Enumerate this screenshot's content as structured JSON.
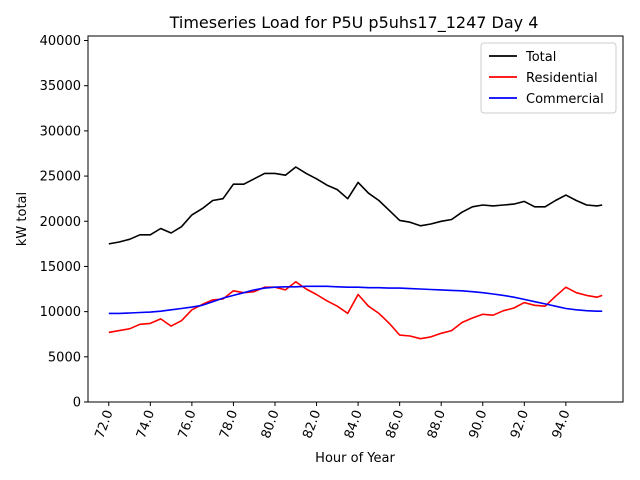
{
  "chart_data": {
    "type": "line",
    "title": "Timeseries Load for P5U p5uhs17_1247  Day 4",
    "xlabel": "Hour of Year",
    "ylabel": "kW total",
    "xlim": [
      71,
      96.75
    ],
    "ylim": [
      0,
      40500
    ],
    "xticks": [
      72,
      74,
      76,
      78,
      80,
      82,
      84,
      86,
      88,
      90,
      92,
      94
    ],
    "xtick_labels": [
      "72.0",
      "74.0",
      "76.0",
      "78.0",
      "80.0",
      "82.0",
      "84.0",
      "86.0",
      "88.0",
      "90.0",
      "92.0",
      "94.0"
    ],
    "yticks": [
      0,
      5000,
      10000,
      15000,
      20000,
      25000,
      30000,
      35000,
      40000
    ],
    "ytick_labels": [
      "0",
      "5000",
      "10000",
      "15000",
      "20000",
      "25000",
      "30000",
      "35000",
      "40000"
    ],
    "legend": "top-right",
    "grid": false,
    "x": [
      72,
      72.5,
      73,
      73.5,
      74,
      74.5,
      75,
      75.5,
      76,
      76.5,
      77,
      77.5,
      78,
      78.5,
      79,
      79.5,
      80,
      80.5,
      81,
      81.5,
      82,
      82.5,
      83,
      83.5,
      84,
      84.5,
      85,
      85.5,
      86,
      86.5,
      87,
      87.5,
      88,
      88.5,
      89,
      89.5,
      90,
      90.5,
      91,
      91.5,
      92,
      92.5,
      93,
      93.5,
      94,
      94.5,
      95,
      95.5,
      95.75
    ],
    "series": [
      {
        "name": "Total",
        "color": "#000000",
        "values": [
          17500,
          17700,
          18000,
          18500,
          18500,
          19200,
          18700,
          19400,
          20700,
          21400,
          22300,
          22500,
          24100,
          24100,
          24700,
          25300,
          25300,
          25100,
          26000,
          25300,
          24700,
          24000,
          23500,
          22500,
          24300,
          23100,
          22300,
          21200,
          20100,
          19900,
          19500,
          19700,
          20000,
          20200,
          21000,
          21600,
          21800,
          21700,
          21800,
          21900,
          22200,
          21600,
          21600,
          22300,
          22900,
          22300,
          21800,
          21700,
          21800
        ]
      },
      {
        "name": "Residential",
        "color": "#ff0000",
        "values": [
          7700,
          7900,
          8100,
          8600,
          8700,
          9200,
          8400,
          9000,
          10200,
          10800,
          11300,
          11400,
          12300,
          12100,
          12200,
          12700,
          12700,
          12400,
          13300,
          12500,
          11900,
          11200,
          10600,
          9800,
          11900,
          10600,
          9800,
          8700,
          7400,
          7300,
          7000,
          7200,
          7600,
          7900,
          8800,
          9300,
          9700,
          9600,
          10100,
          10400,
          11000,
          10700,
          10600,
          11700,
          12700,
          12100,
          11800,
          11600,
          11800
        ]
      },
      {
        "name": "Commercial",
        "color": "#0000ff",
        "values": [
          9800,
          9800,
          9850,
          9900,
          9950,
          10050,
          10200,
          10350,
          10500,
          10700,
          11100,
          11500,
          11800,
          12100,
          12400,
          12600,
          12700,
          12750,
          12750,
          12800,
          12800,
          12800,
          12750,
          12700,
          12700,
          12650,
          12650,
          12600,
          12600,
          12550,
          12500,
          12450,
          12400,
          12350,
          12300,
          12200,
          12100,
          11950,
          11800,
          11600,
          11350,
          11100,
          10850,
          10600,
          10350,
          10200,
          10100,
          10050,
          10050
        ]
      }
    ]
  }
}
